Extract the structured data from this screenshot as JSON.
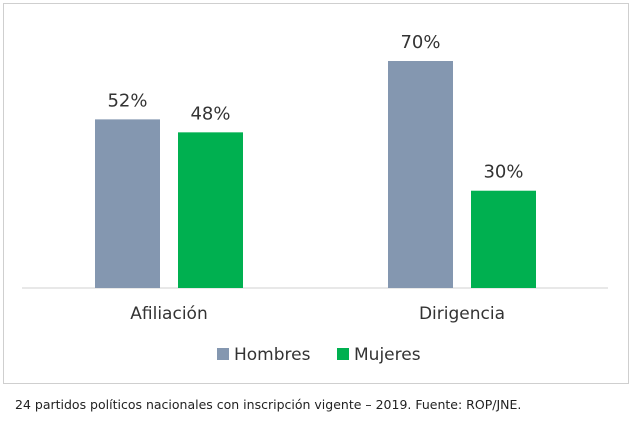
{
  "chart_data": {
    "type": "bar",
    "categories": [
      "Afiliación",
      "Dirigencia"
    ],
    "series": [
      {
        "name": "Hombres",
        "values": [
          52,
          70
        ],
        "labels": [
          "52%",
          "70%"
        ],
        "color": "#8497b0"
      },
      {
        "name": "Mujeres",
        "values": [
          48,
          30
        ],
        "labels": [
          "48%",
          "30%"
        ],
        "color": "#00b050"
      }
    ],
    "ylim": [
      0,
      70
    ],
    "grid": false,
    "legend_position": "bottom"
  },
  "footnote": "24 partidos políticos nacionales con inscripción vigente – 2019. Fuente: ROP/JNE."
}
